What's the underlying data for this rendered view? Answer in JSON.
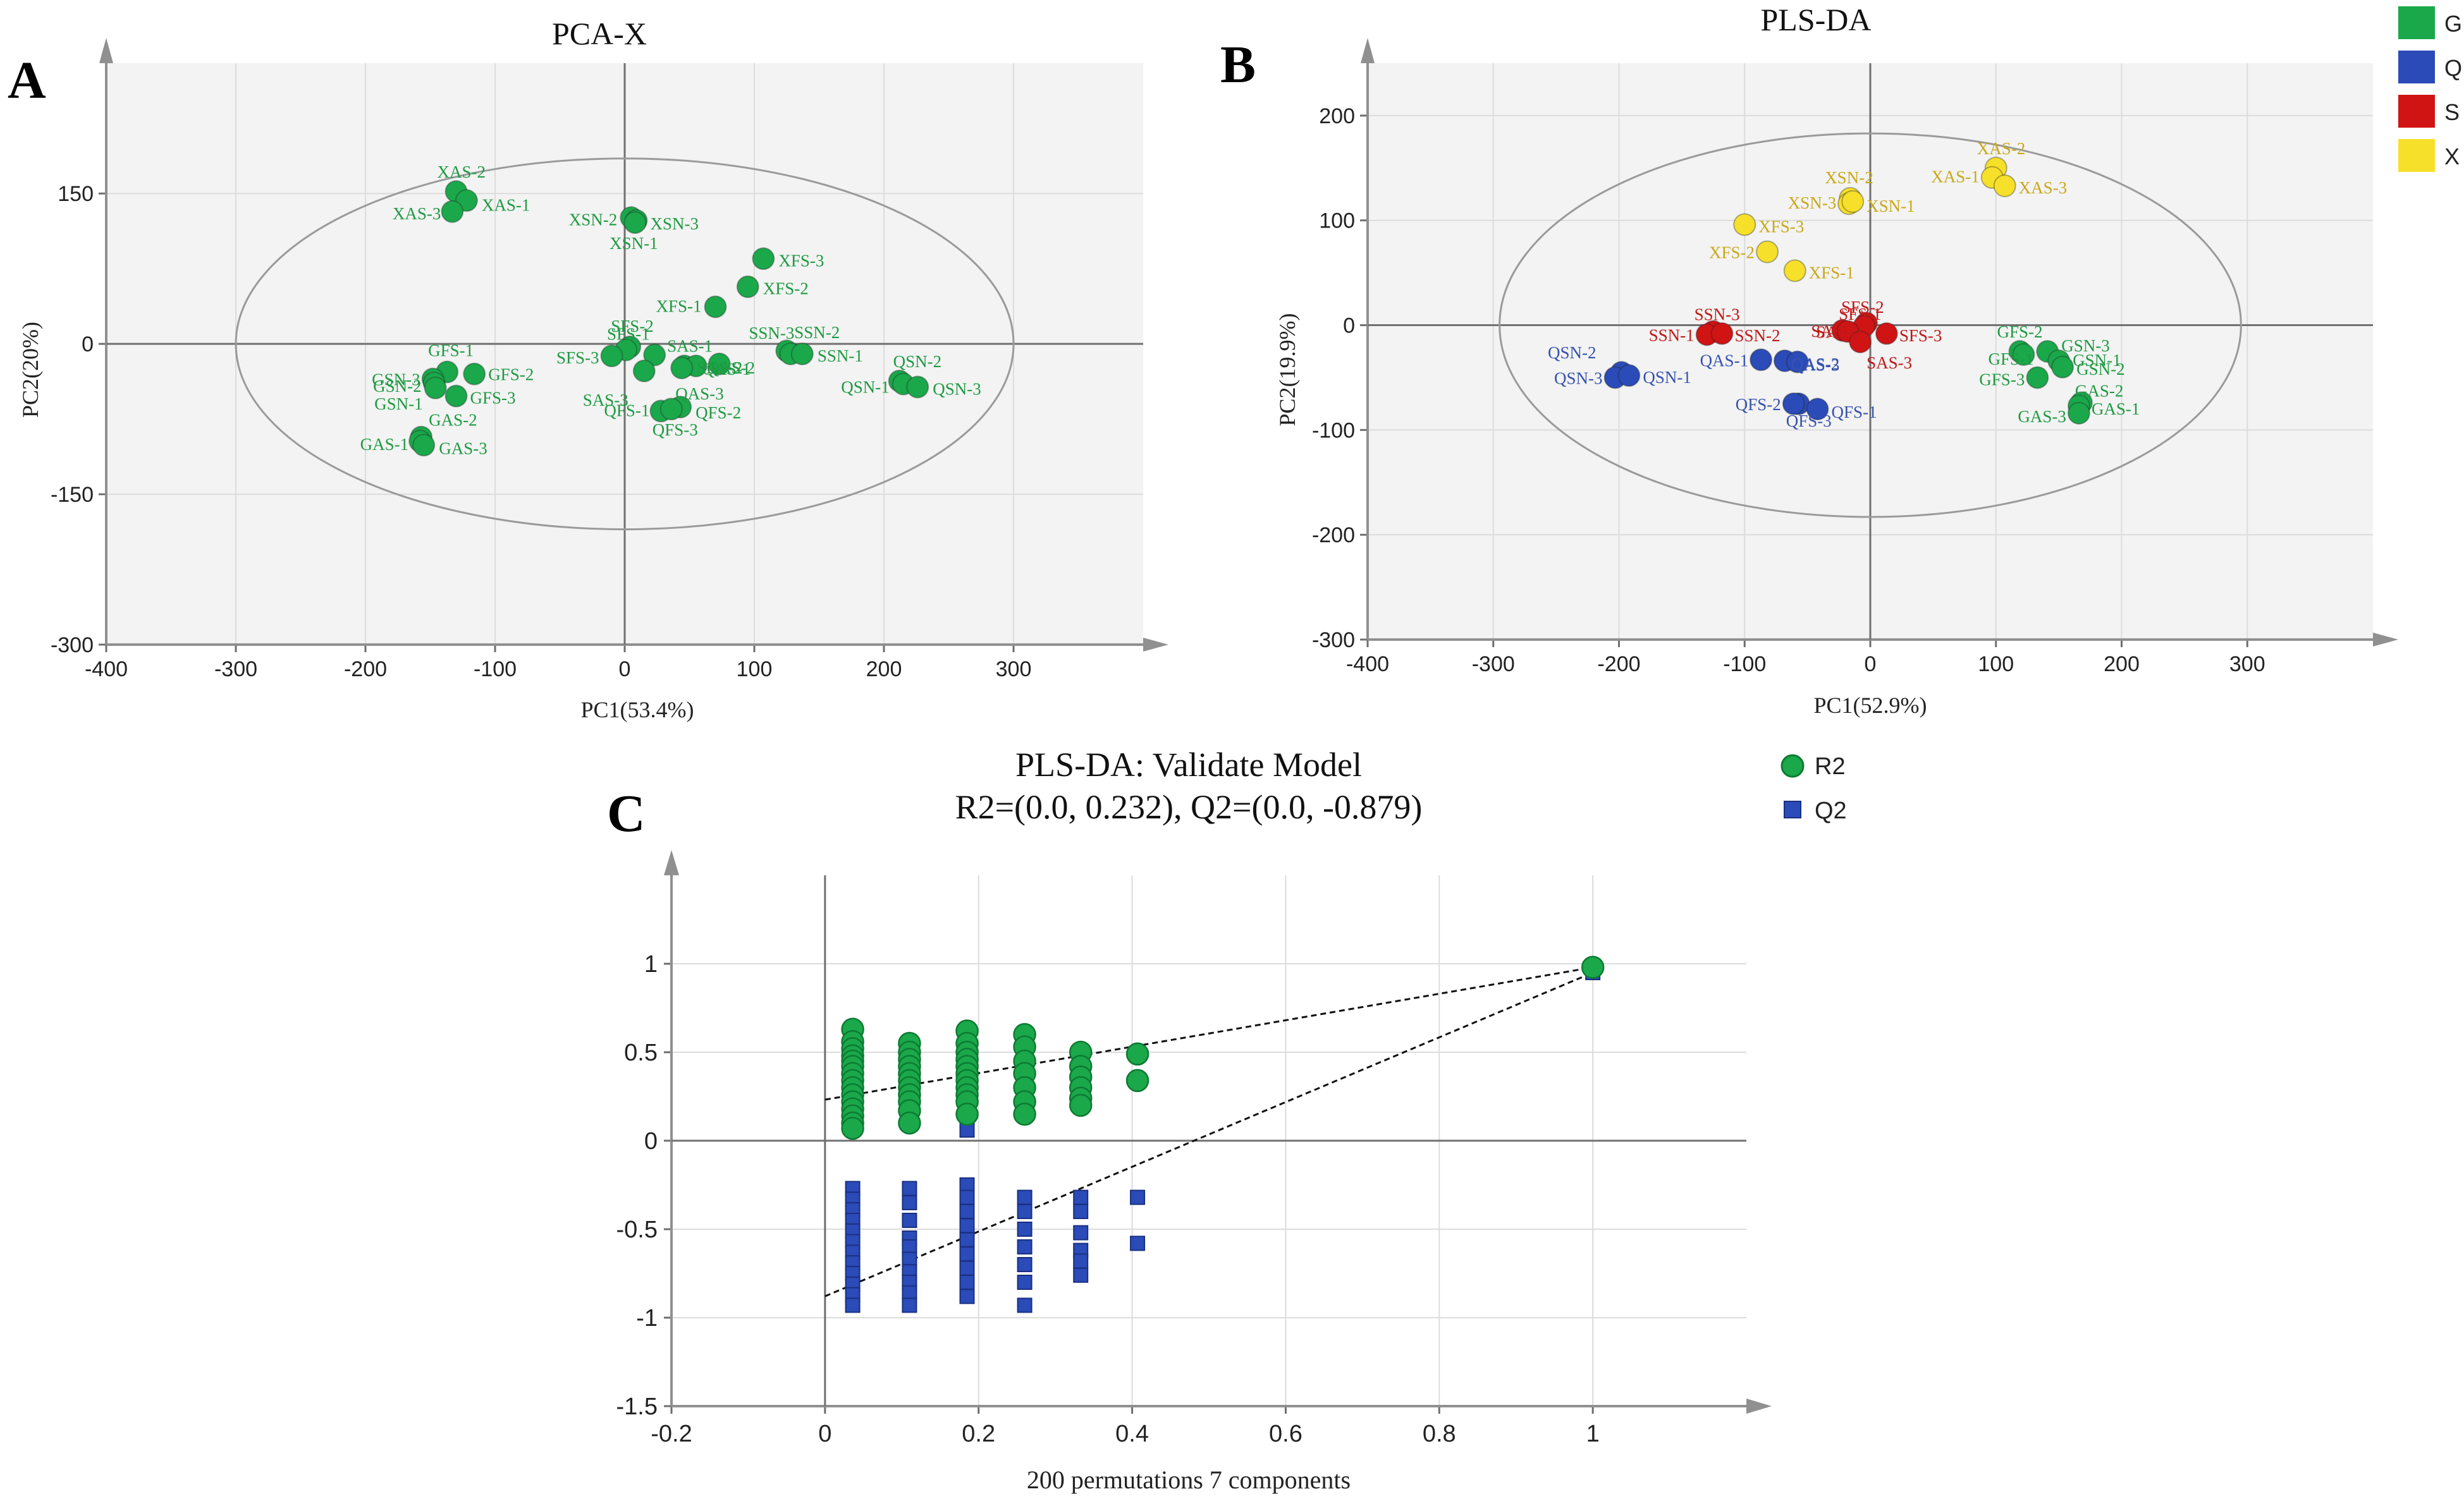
{
  "figure": {
    "panel_labels": [
      "A",
      "B",
      "C"
    ]
  },
  "colors": {
    "G": "#1aa84a",
    "G_text": "#1e9a42",
    "Q": "#2a4bb8",
    "Q_text": "#3652b0",
    "S": "#d01414",
    "S_text": "#c01818",
    "X": "#f7e02a",
    "X_text": "#c8a818",
    "plot_bg": "#f3f3f3",
    "grid": "#dcdcdc",
    "axis": "#6e6e6e"
  },
  "legend_top": {
    "items": [
      {
        "key": "G",
        "label": "G"
      },
      {
        "key": "Q",
        "label": "Q"
      },
      {
        "key": "S",
        "label": "S"
      },
      {
        "key": "X",
        "label": "X"
      }
    ]
  },
  "legend_c": {
    "items": [
      {
        "marker": "circle",
        "label": "R2"
      },
      {
        "marker": "square",
        "label": "Q2"
      }
    ]
  },
  "chart_data": [
    {
      "id": "A",
      "type": "scatter",
      "title": "PCA-X",
      "xlabel": "PC1(53.4%)",
      "ylabel": "PC2(20%)",
      "xlim": [
        -400,
        400
      ],
      "ylim": [
        -300,
        280
      ],
      "xticks": [
        -400,
        -300,
        -200,
        -100,
        0,
        100,
        200,
        300
      ],
      "yticks": [
        -300,
        -150,
        0,
        150
      ],
      "ellipse": {
        "cx": 0,
        "cy": 0,
        "rx": 300,
        "ry": 185
      },
      "points": [
        {
          "label": "XAS-2",
          "x": -130,
          "y": 152,
          "group": "G"
        },
        {
          "label": "XAS-1",
          "x": -122,
          "y": 143,
          "group": "G"
        },
        {
          "label": "XAS-3",
          "x": -133,
          "y": 132,
          "group": "G"
        },
        {
          "label": "XSN-2",
          "x": 5,
          "y": 126,
          "group": "G"
        },
        {
          "label": "XSN-3",
          "x": 9,
          "y": 123,
          "group": "G"
        },
        {
          "label": "XSN-1",
          "x": 8,
          "y": 121,
          "group": "G"
        },
        {
          "label": "XFS-3",
          "x": 107,
          "y": 85,
          "group": "G"
        },
        {
          "label": "XFS-2",
          "x": 95,
          "y": 57,
          "group": "G"
        },
        {
          "label": "XFS-1",
          "x": 70,
          "y": 37,
          "group": "G"
        },
        {
          "label": "SSN-2",
          "x": 125,
          "y": -7,
          "group": "G"
        },
        {
          "label": "SSN-3",
          "x": 128,
          "y": -10,
          "group": "G"
        },
        {
          "label": "SSN-1",
          "x": 137,
          "y": -10,
          "group": "G"
        },
        {
          "label": "SFS-2",
          "x": 4,
          "y": -3,
          "group": "G"
        },
        {
          "label": "SFS-1",
          "x": 1,
          "y": -6,
          "group": "G"
        },
        {
          "label": "SFS-3",
          "x": -10,
          "y": -12,
          "group": "G"
        },
        {
          "label": "SAS-1",
          "x": 23,
          "y": -11,
          "group": "G"
        },
        {
          "label": "SAS-2",
          "x": 46,
          "y": -22,
          "group": "G"
        },
        {
          "label": "SAS-3",
          "x": 15,
          "y": -27,
          "group": "G"
        },
        {
          "label": "QAS-1",
          "x": 55,
          "y": -22,
          "group": "G"
        },
        {
          "label": "QAS-2",
          "x": 73,
          "y": -20,
          "group": "G"
        },
        {
          "label": "QAS-3",
          "x": 44,
          "y": -24,
          "group": "G"
        },
        {
          "label": "QFS-2",
          "x": 43,
          "y": -63,
          "group": "G"
        },
        {
          "label": "QFS-1",
          "x": 28,
          "y": -67,
          "group": "G"
        },
        {
          "label": "QFS-3",
          "x": 36,
          "y": -65,
          "group": "G"
        },
        {
          "label": "QSN-2",
          "x": 212,
          "y": -37,
          "group": "G"
        },
        {
          "label": "QSN-1",
          "x": 215,
          "y": -40,
          "group": "G"
        },
        {
          "label": "QSN-3",
          "x": 226,
          "y": -43,
          "group": "G"
        },
        {
          "label": "GFS-1",
          "x": -137,
          "y": -28,
          "group": "G"
        },
        {
          "label": "GFS-2",
          "x": -116,
          "y": -30,
          "group": "G"
        },
        {
          "label": "GFS-3",
          "x": -130,
          "y": -52,
          "group": "G"
        },
        {
          "label": "GSN-3",
          "x": -148,
          "y": -35,
          "group": "G"
        },
        {
          "label": "GSN-2",
          "x": -147,
          "y": -39,
          "group": "G"
        },
        {
          "label": "GSN-1",
          "x": -146,
          "y": -44,
          "group": "G"
        },
        {
          "label": "GAS-2",
          "x": -157,
          "y": -93,
          "group": "G"
        },
        {
          "label": "GAS-1",
          "x": -158,
          "y": -97,
          "group": "G"
        },
        {
          "label": "GAS-3",
          "x": -155,
          "y": -101,
          "group": "G"
        }
      ],
      "labels_shown": [
        "XAS-2",
        "XAS-1",
        "XAS-3",
        "XSN-2",
        "XSN-3",
        "XSN-1",
        "XFS-3",
        "XFS-2",
        "XFS-1",
        "SSN-2",
        "SSN-3",
        "SSN-1",
        "SFS-2",
        "SFS-1",
        "SFS-3",
        "SAS-1",
        "SAS-2",
        "SAS-3",
        "QAS-1",
        "QAS-2",
        "QAS-3",
        "QFS-2",
        "QFS-1",
        "QFS-3",
        "QSN-2",
        "QSN-1",
        "QSN-3",
        "GFS-1",
        "GFS-2",
        "GFS-3",
        "GSN-3",
        "GSN-2",
        "GSN-1",
        "GAS-2",
        "GAS-1",
        "GAS-3"
      ]
    },
    {
      "id": "B",
      "type": "scatter",
      "title": "PLS-DA",
      "xlabel": "PC1(52.9%)",
      "ylabel": "PC2(19.9%)",
      "xlim": [
        -400,
        400
      ],
      "ylim": [
        -300,
        250
      ],
      "xticks": [
        -400,
        -300,
        -200,
        -100,
        0,
        100,
        200,
        300
      ],
      "yticks": [
        -300,
        -200,
        -100,
        0,
        100,
        200
      ],
      "ellipse": {
        "cx": 0,
        "cy": 0,
        "rx": 295,
        "ry": 183
      },
      "points": [
        {
          "label": "XAS-2",
          "x": 100,
          "y": 150,
          "group": "X"
        },
        {
          "label": "XAS-1",
          "x": 97,
          "y": 141,
          "group": "X"
        },
        {
          "label": "XAS-3",
          "x": 107,
          "y": 133,
          "group": "X"
        },
        {
          "label": "XSN-2",
          "x": -16,
          "y": 121,
          "group": "X"
        },
        {
          "label": "XSN-3",
          "x": -17,
          "y": 116,
          "group": "X"
        },
        {
          "label": "XSN-1",
          "x": -14,
          "y": 118,
          "group": "X"
        },
        {
          "label": "XFS-3",
          "x": -100,
          "y": 96,
          "group": "X"
        },
        {
          "label": "XFS-2",
          "x": -82,
          "y": 70,
          "group": "X"
        },
        {
          "label": "XFS-1",
          "x": -60,
          "y": 52,
          "group": "X"
        },
        {
          "label": "SSN-3",
          "x": -125,
          "y": -6,
          "group": "S"
        },
        {
          "label": "SSN-1",
          "x": -130,
          "y": -9,
          "group": "S"
        },
        {
          "label": "SSN-2",
          "x": -118,
          "y": -8,
          "group": "S"
        },
        {
          "label": "SFS-2",
          "x": -3,
          "y": 2,
          "group": "S"
        },
        {
          "label": "SFS-1",
          "x": -5,
          "y": -1,
          "group": "S"
        },
        {
          "label": "SFS-3",
          "x": 13,
          "y": -8,
          "group": "S"
        },
        {
          "label": "SAS-1",
          "x": -22,
          "y": -5,
          "group": "S"
        },
        {
          "label": "SAS-2",
          "x": -18,
          "y": -6,
          "group": "S"
        },
        {
          "label": "SAS-3",
          "x": -8,
          "y": -16,
          "group": "S"
        },
        {
          "label": "QSN-2",
          "x": -198,
          "y": -45,
          "group": "Q"
        },
        {
          "label": "QSN-3",
          "x": -203,
          "y": -50,
          "group": "Q"
        },
        {
          "label": "QSN-1",
          "x": -192,
          "y": -48,
          "group": "Q"
        },
        {
          "label": "QAS-1",
          "x": -87,
          "y": -33,
          "group": "Q"
        },
        {
          "label": "QAS-2",
          "x": -68,
          "y": -34,
          "group": "Q"
        },
        {
          "label": "QAS-3",
          "x": -58,
          "y": -35,
          "group": "Q"
        },
        {
          "label": "QFS-3",
          "x": -57,
          "y": -75,
          "group": "Q"
        },
        {
          "label": "QFS-2",
          "x": -61,
          "y": -75,
          "group": "Q"
        },
        {
          "label": "QFS-1",
          "x": -42,
          "y": -80,
          "group": "Q"
        },
        {
          "label": "GFS-2",
          "x": 119,
          "y": -25,
          "group": "G"
        },
        {
          "label": "GFS-1",
          "x": 122,
          "y": -28,
          "group": "G"
        },
        {
          "label": "GFS-3",
          "x": 133,
          "y": -50,
          "group": "G"
        },
        {
          "label": "GSN-3",
          "x": 141,
          "y": -25,
          "group": "G"
        },
        {
          "label": "GSN-1",
          "x": 150,
          "y": -34,
          "group": "G"
        },
        {
          "label": "GSN-2",
          "x": 153,
          "y": -40,
          "group": "G"
        },
        {
          "label": "GAS-2",
          "x": 168,
          "y": -74,
          "group": "G"
        },
        {
          "label": "GAS-1",
          "x": 166,
          "y": -77,
          "group": "G"
        },
        {
          "label": "GAS-3",
          "x": 166,
          "y": -84,
          "group": "G"
        }
      ],
      "labels_shown": [
        "XAS-2",
        "XAS-1",
        "XAS-3",
        "XSN-2",
        "XSN-3",
        "XSN-1",
        "XFS-3",
        "XFS-2",
        "XFS-1",
        "SSN-3",
        "SSN-1",
        "SSN-2",
        "SFS-2",
        "SFS-1",
        "SFS-3",
        "SAS-1",
        "SAS-2",
        "SAS-3",
        "QSN-2",
        "QSN-3",
        "QSN-1",
        "QAS-1",
        "QAS-2",
        "QAS-3",
        "QFS-3",
        "QFS-2",
        "QFS-1",
        "GFS-2",
        "GFS-1",
        "GFS-3",
        "GSN-3",
        "GSN-1",
        "GSN-2",
        "GAS-2",
        "GAS-1",
        "GAS-3"
      ]
    },
    {
      "id": "C",
      "type": "scatter",
      "title": "PLS-DA: Validate Model",
      "subtitle": "R2=(0.0, 0.232), Q2=(0.0, -0.879)",
      "xlabel": "200 permutations 7 components",
      "ylabel": "",
      "xlim": [
        -0.2,
        1.2
      ],
      "ylim": [
        -1.5,
        1.5
      ],
      "xticks": [
        -0.2,
        0,
        0.2,
        0.4,
        0.6,
        0.8,
        1
      ],
      "yticks": [
        -1.5,
        -1,
        -0.5,
        0,
        0.5,
        1
      ],
      "series": [
        {
          "name": "R2",
          "marker": "circle",
          "points": [
            [
              0.036,
              0.63
            ],
            [
              0.036,
              0.56
            ],
            [
              0.036,
              0.52
            ],
            [
              0.036,
              0.48
            ],
            [
              0.036,
              0.45
            ],
            [
              0.036,
              0.42
            ],
            [
              0.036,
              0.38
            ],
            [
              0.036,
              0.34
            ],
            [
              0.036,
              0.3
            ],
            [
              0.036,
              0.26
            ],
            [
              0.036,
              0.22
            ],
            [
              0.036,
              0.18
            ],
            [
              0.036,
              0.14
            ],
            [
              0.036,
              0.1
            ],
            [
              0.036,
              0.07
            ],
            [
              0.11,
              0.55
            ],
            [
              0.11,
              0.5
            ],
            [
              0.11,
              0.46
            ],
            [
              0.11,
              0.42
            ],
            [
              0.11,
              0.38
            ],
            [
              0.11,
              0.34
            ],
            [
              0.11,
              0.3
            ],
            [
              0.11,
              0.26
            ],
            [
              0.11,
              0.22
            ],
            [
              0.11,
              0.17
            ],
            [
              0.11,
              0.1
            ],
            [
              0.185,
              0.62
            ],
            [
              0.185,
              0.55
            ],
            [
              0.185,
              0.5
            ],
            [
              0.185,
              0.46
            ],
            [
              0.185,
              0.42
            ],
            [
              0.185,
              0.38
            ],
            [
              0.185,
              0.34
            ],
            [
              0.185,
              0.3
            ],
            [
              0.185,
              0.26
            ],
            [
              0.185,
              0.22
            ],
            [
              0.185,
              0.15
            ],
            [
              0.26,
              0.6
            ],
            [
              0.26,
              0.53
            ],
            [
              0.26,
              0.45
            ],
            [
              0.26,
              0.38
            ],
            [
              0.26,
              0.3
            ],
            [
              0.26,
              0.22
            ],
            [
              0.26,
              0.15
            ],
            [
              0.333,
              0.5
            ],
            [
              0.333,
              0.42
            ],
            [
              0.333,
              0.36
            ],
            [
              0.333,
              0.3
            ],
            [
              0.333,
              0.24
            ],
            [
              0.333,
              0.2
            ],
            [
              0.407,
              0.49
            ],
            [
              0.407,
              0.34
            ],
            [
              1.0,
              0.98
            ]
          ],
          "regression": {
            "intercept": 0.232,
            "slope": 0.748
          }
        },
        {
          "name": "Q2",
          "marker": "square",
          "points": [
            [
              0.036,
              -0.27
            ],
            [
              0.036,
              -0.33
            ],
            [
              0.036,
              -0.39
            ],
            [
              0.036,
              -0.45
            ],
            [
              0.036,
              -0.51
            ],
            [
              0.036,
              -0.57
            ],
            [
              0.036,
              -0.63
            ],
            [
              0.036,
              -0.69
            ],
            [
              0.036,
              -0.75
            ],
            [
              0.036,
              -0.81
            ],
            [
              0.036,
              -0.87
            ],
            [
              0.036,
              -0.93
            ],
            [
              0.11,
              -0.27
            ],
            [
              0.11,
              -0.35
            ],
            [
              0.11,
              -0.45
            ],
            [
              0.11,
              -0.55
            ],
            [
              0.11,
              -0.6
            ],
            [
              0.11,
              -0.67
            ],
            [
              0.11,
              -0.74
            ],
            [
              0.11,
              -0.8
            ],
            [
              0.11,
              -0.86
            ],
            [
              0.11,
              -0.93
            ],
            [
              0.185,
              0.06
            ],
            [
              0.185,
              -0.25
            ],
            [
              0.185,
              -0.32
            ],
            [
              0.185,
              -0.4
            ],
            [
              0.185,
              -0.48
            ],
            [
              0.185,
              -0.56
            ],
            [
              0.185,
              -0.64
            ],
            [
              0.185,
              -0.72
            ],
            [
              0.185,
              -0.8
            ],
            [
              0.185,
              -0.88
            ],
            [
              0.26,
              -0.32
            ],
            [
              0.26,
              -0.4
            ],
            [
              0.26,
              -0.5
            ],
            [
              0.26,
              -0.6
            ],
            [
              0.26,
              -0.7
            ],
            [
              0.26,
              -0.8
            ],
            [
              0.26,
              -0.93
            ],
            [
              0.333,
              -0.32
            ],
            [
              0.333,
              -0.4
            ],
            [
              0.333,
              -0.52
            ],
            [
              0.333,
              -0.62
            ],
            [
              0.333,
              -0.68
            ],
            [
              0.333,
              -0.76
            ],
            [
              0.407,
              -0.32
            ],
            [
              0.407,
              -0.58
            ],
            [
              1.0,
              0.95
            ]
          ],
          "regression": {
            "intercept": -0.879,
            "slope": 1.829
          }
        }
      ]
    }
  ]
}
